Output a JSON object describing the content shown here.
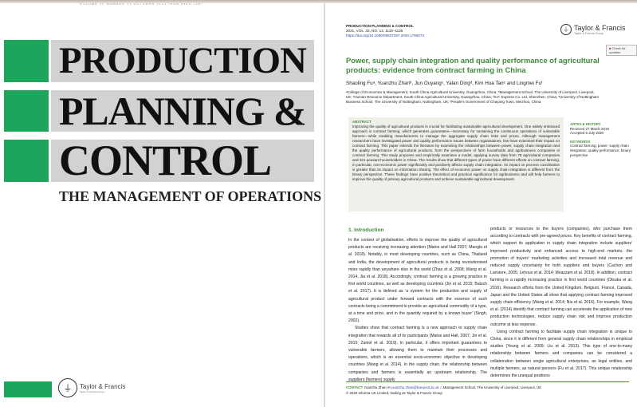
{
  "cover": {
    "issue_line": "VOLUME 32   NUMBER 13   OCTOBER 2021   ISSN 0953-7287",
    "title_lines": [
      "PRODUCTION",
      "PLANNING &",
      "CONTROL"
    ],
    "subtitle": "THE MANAGEMENT OF OPERATIONS",
    "publisher": "Taylor & Francis",
    "publisher_group": "Taylor & Francis Group",
    "accent_color": "#1ea55c"
  },
  "article": {
    "journal": "PRODUCTION PLANNING & CONTROL",
    "volume_line": "2021, VOL. 32, NO. 13, 1119–1135",
    "doi": "https://doi.org/10.1080/09537287.2020.1796074",
    "publisher": "Taylor & Francis",
    "publisher_group": "Taylor & Francis Group",
    "check_updates": "Check for updates",
    "title": "Power, supply chain integration and quality performance of agricultural products: evidence from contract farming in China",
    "authors": "Shaoling Fuᵃ, Yuanzhu Zhanᵇ, Jun Ouyangᶜ, Yalan Dingᵈ, Kim Hua Tanᵉ and Lingmei Fuᶠ",
    "affiliations": "ᵃCollege of Economics & Management, South China Agricultural University, Guangzhou, China; ᵇManagement School, The University of Liverpool, Liverpool, UK; ᶜHuman Resource Department, South China Agricultural University, Guangzhou, China; ᵈS.F. Express Co. Ltd, Shenzhen, China; ᵉUniversity of Nottingham Business School, The University of Nottingham, Nottingham, UK; ᶠPeople's Government of Chayang Town, Meizhou, China",
    "abstract_label": "ABSTRACT",
    "abstract": "Improving the quality of agricultural products is crucial for facilitating sustainable agricultural development. One widely embraced approach is contract farming, which generates guarantees—necessary for sustaining the continuous operations of vulnerable farmers—while enabling manufacturers to manage the aggregate supply chain risks and prices. Although management researchers have investigated power and quality performance issues between organisations, few have examined their impact on contract farming. This paper extends the literature by examining the relationships between power, supply chain integration and the quality performance of agricultural products, from the perspectives of farm households and agribusiness companies in contract farming. This study proposes and empirically examines a model, applying survey data from 78 agricultural companies and 321 peasant householders in China. The results show that different types of power have different effects on contract farming. In particular, non-economic power significantly and positively affects supply chain integration. Its impact on process coordination is greater than its impact on information sharing. The effect of economic power on supply chain integration is different from the binary perspective. These findings have positive theoretical and practical significance for agribusiness and will help farmers to improve the quality of primary agricultural products and achieve sustainable agricultural development.",
    "history_label": "ARTICLE HISTORY",
    "received": "Received 27 March 2019",
    "accepted": "Accepted 6 July 2020",
    "keywords_label": "KEYWORDS",
    "keywords": "Contract farming; power; supply chain integration; quality performance; binary perspective",
    "intro_heading": "1. Introduction",
    "left_p1": "In the context of globalisation, efforts to improve the quality of agricultural products are receiving increasing attention (Matos and Hall 2007; Mangla et al. 2018). Notably, in most developing countries, such as China, Thailand and India, the development of agricultural products is being revolutionised more rapidly than anywhere else in the world (Zhao et al. 2008; Wang et al. 2014, Jia et al. 2018). Accordingly, contract farming is a growing practice in first world countries, as well as developing countries (Jin et al. 2015; Baluch et al. 2017). It is defined as 'a system for the production and supply of agricultural product under forward contracts with the essence of such contracts being a commitment to provide an agricultural commodity of a type, at a time and price, and in the quantity required by a known buyer' (Singh, 2002).",
    "left_p2": "Studies show that contract farming is a new approach to supply chain integration that rewards all of its participants (Matos and Hall, 2007; Jin et al. 2015; Zainol et al. 2019). In particular, it offers important guarantees to vulnerable farmers, allowing them to maintain their processes and operations, which is an essential socio-economic objective in developing countries (Wang et al. 2014). In the supply chain, the relationship between companies and farmers is essentially an upstream relationship. The suppliers (farmers) supply",
    "right_p1": "products or resources to the buyers (companies), who purchase them according to contracts with pre-agreed prices. Key benefits of contract farming, which support its application in supply chain integration include suppliers' improved productivity and enhanced access to high-end markets, the promotion of buyers' marketing activities and increased total revenue and reduced supply uncertainty for both suppliers and buyers (Cachon and Lariviere, 2005; Lehoux et al. 2014; Moazzam et al. 2018). In addition, contract farming is a rapidly increasing practice in first world countries (Otsuka et al. 2016). Research efforts from the United Kingdom, Belgium, France, Canada, Japan and the United States all show that applying contract farming improved supply chain efficiency (Wang et al. 2014; Niu et al. 2016). For example, Wang et al. (2014) identify that contract farming can accelerate the application of new production technologies, reduce supply chain risk and improve production outcome at less expense.",
    "right_p2": "Using contract farming to facilitate supply chain integration is unique to China, since it is different from general supply chain relationships in empirical studies (Yeung et al. 2009; Liu et al. 2013). This type of one-to-many relationship between farmers and companies can be considered a collaboration between single agricultural enterprises, as legal entities, and multiple farmers, as natural persons (Fu et al. 2017). This unique relationship determines the unequal positions",
    "contact_label": "CONTACT",
    "contact_name": "Yuanzhu Zhan",
    "contact_email": "yuanzhu.zhan@liverpool.ac.uk",
    "contact_address": "Management School, The University of Liverpool, Liverpool, UK",
    "copyright": "© 2020 Informa UK Limited, trading as Taylor & Francis Group"
  }
}
